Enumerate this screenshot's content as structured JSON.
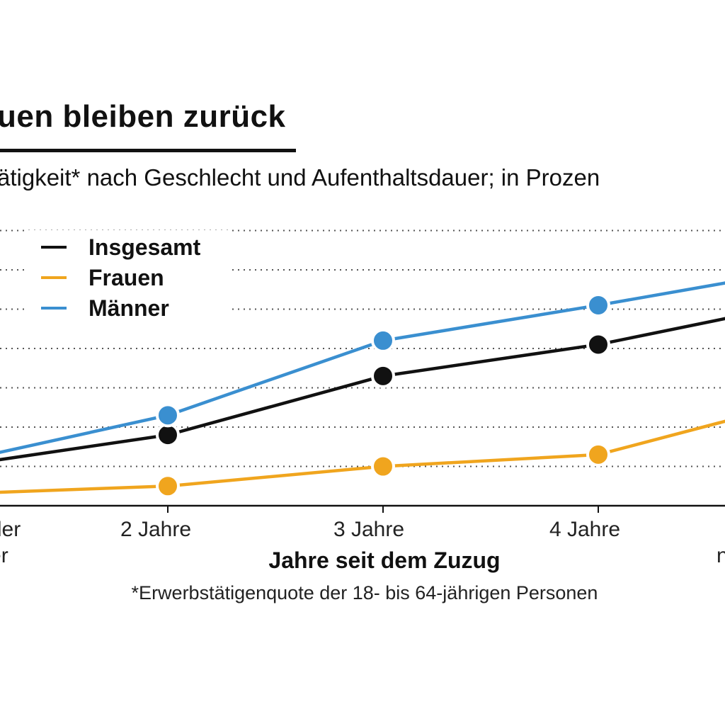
{
  "header": {
    "title": "uen bleiben zurück",
    "subtitle": "ätigkeit* nach Geschlecht und Aufenthaltsdauer;  in Prozen"
  },
  "footnote": "*Erwerbstätigenquote der 18- bis 64-jährigen Personen",
  "colors": {
    "insgesamt": "#111111",
    "frauen": "#f0a51e",
    "maenner": "#3a8fd0",
    "grid": "#555555",
    "axis": "#111111"
  },
  "chart_data": {
    "type": "line",
    "title": "uen bleiben zurück",
    "xlabel": "Jahre seit dem Zuzug",
    "ylabel": "",
    "categories": [
      "r oder\nger",
      "2 Jahre",
      "3 Jahre",
      "4 Jahre",
      "n"
    ],
    "ylim": [
      0,
      70
    ],
    "grid": true,
    "legend": "top-left",
    "series": [
      {
        "name": "Insgesamt",
        "key": "insgesamt",
        "values": [
          10,
          18,
          33,
          41,
          48
        ]
      },
      {
        "name": "Frauen",
        "key": "frauen",
        "values": [
          3,
          5,
          10,
          13,
          22
        ]
      },
      {
        "name": "Männer",
        "key": "maenner",
        "values": [
          11,
          23,
          42,
          51,
          57
        ]
      }
    ]
  }
}
